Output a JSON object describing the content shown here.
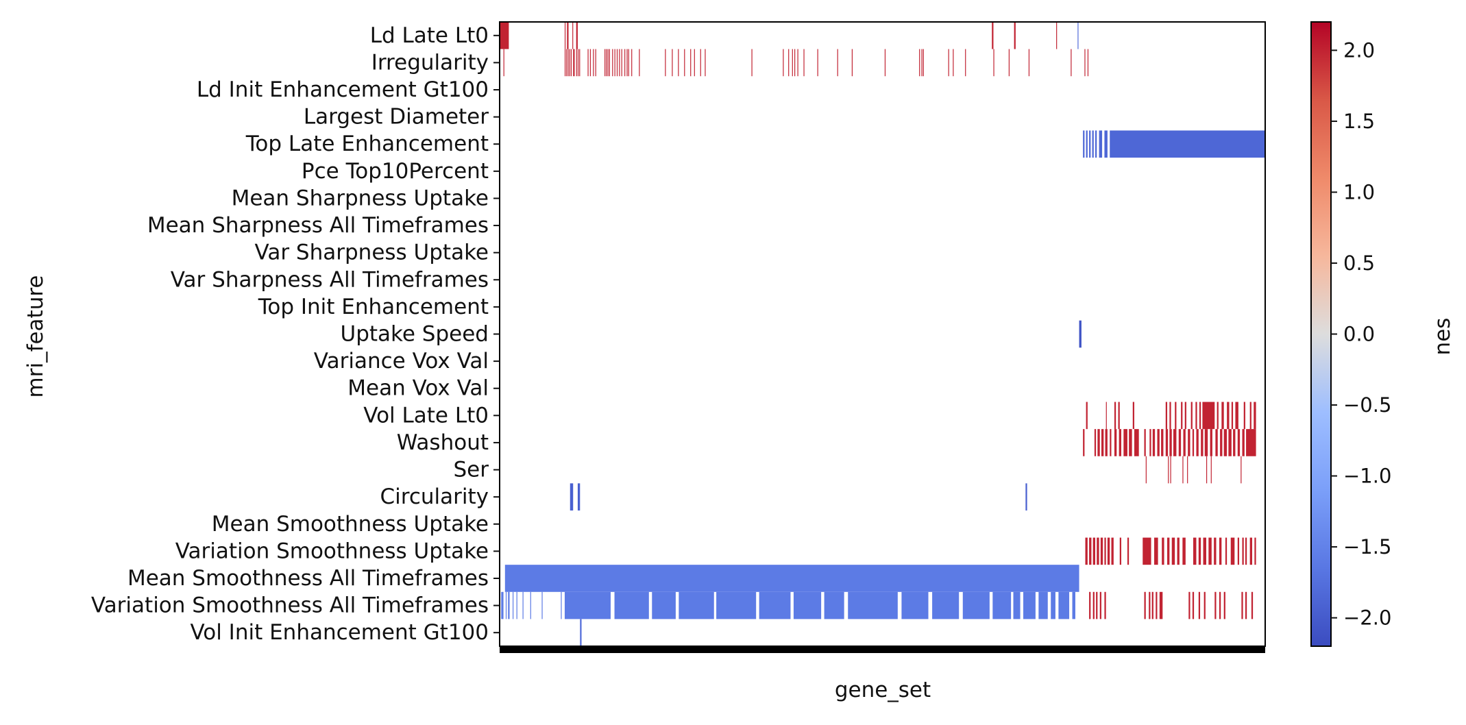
{
  "chart_data": {
    "type": "heatmap",
    "title": "",
    "xlabel": "gene_set",
    "ylabel": "mri_feature",
    "colorbar_label": "nes",
    "colormap": "coolwarm",
    "color_range": [
      -2.2,
      2.2
    ],
    "colorbar_ticks": [
      "2.0",
      "1.5",
      "1.0",
      "0.5",
      "0.0",
      "−0.5",
      "−1.0",
      "−1.5",
      "−2.0"
    ],
    "colorbar_tick_values": [
      2.0,
      1.5,
      1.0,
      0.5,
      0.0,
      -0.5,
      -1.0,
      -1.5,
      -2.0
    ],
    "x_range": [
      0,
      1000
    ],
    "x_tick_labels_visible": false,
    "rows": [
      "Ld Late Lt0",
      "Irregularity",
      "Ld Init Enhancement Gt100",
      "Largest Diameter",
      "Top Late Enhancement",
      "Pce Top10Percent",
      "Mean Sharpness Uptake",
      "Mean Sharpness All Timeframes",
      "Var Sharpness Uptake",
      "Var Sharpness All Timeframes",
      "Top Init Enhancement",
      "Uptake Speed",
      "Variance Vox Val",
      "Mean Vox Val",
      "Vol Late Lt0",
      "Washout",
      "Ser",
      "Circularity",
      "Mean Smoothness Uptake",
      "Variation Smoothness Uptake",
      "Mean Smoothness All Timeframes",
      "Variation Smoothness All Timeframes",
      "Vol Init Enhancement Gt100"
    ],
    "cells": [
      {
        "row": 0,
        "value": 2.0,
        "ranges": [
          [
            0,
            12
          ],
          [
            85,
            86
          ],
          [
            88,
            90
          ],
          [
            95,
            96
          ],
          [
            100,
            102
          ],
          [
            643,
            645
          ],
          [
            672,
            674
          ],
          [
            727,
            728
          ]
        ]
      },
      {
        "row": 0,
        "value": -1.8,
        "ranges": [
          [
            755,
            756
          ]
        ]
      },
      {
        "row": 1,
        "value": 2.0,
        "ranges": [
          [
            5,
            6
          ],
          [
            85,
            86
          ],
          [
            87,
            88
          ],
          [
            89,
            90
          ],
          [
            91,
            92
          ],
          [
            93,
            94
          ],
          [
            96,
            98
          ],
          [
            100,
            101
          ],
          [
            102,
            103
          ],
          [
            104,
            105
          ],
          [
            115,
            116
          ],
          [
            118,
            119
          ],
          [
            122,
            123
          ],
          [
            125,
            126
          ],
          [
            137,
            138
          ],
          [
            139,
            140
          ],
          [
            141,
            142
          ],
          [
            143,
            144
          ],
          [
            147,
            148
          ],
          [
            150,
            151
          ],
          [
            153,
            154
          ],
          [
            156,
            157
          ],
          [
            159,
            160
          ],
          [
            163,
            164
          ],
          [
            166,
            167
          ],
          [
            168,
            169
          ],
          [
            172,
            173
          ],
          [
            182,
            183
          ],
          [
            216,
            217
          ],
          [
            225,
            226
          ],
          [
            233,
            234
          ],
          [
            241,
            242
          ],
          [
            249,
            250
          ],
          [
            254,
            255
          ],
          [
            262,
            263
          ],
          [
            268,
            269
          ],
          [
            329,
            330
          ],
          [
            370,
            371
          ],
          [
            377,
            378
          ],
          [
            382,
            383
          ],
          [
            385,
            386
          ],
          [
            389,
            390
          ],
          [
            397,
            398
          ],
          [
            415,
            416
          ],
          [
            441,
            442
          ],
          [
            460,
            461
          ],
          [
            503,
            504
          ],
          [
            548,
            549
          ],
          [
            551,
            552
          ],
          [
            553,
            554
          ],
          [
            586,
            587
          ],
          [
            592,
            593
          ],
          [
            608,
            609
          ],
          [
            645,
            646
          ],
          [
            665,
            666
          ],
          [
            691,
            692
          ],
          [
            746,
            747
          ],
          [
            764,
            765
          ],
          [
            768,
            769
          ]
        ]
      },
      {
        "row": 4,
        "value": -1.85,
        "ranges": [
          [
            762,
            764
          ],
          [
            766,
            768
          ],
          [
            770,
            772
          ],
          [
            774,
            776
          ],
          [
            778,
            780
          ],
          [
            783,
            787
          ],
          [
            790,
            794
          ],
          [
            797,
            1000
          ]
        ]
      },
      {
        "row": 11,
        "value": -2.1,
        "ranges": [
          [
            757,
            760
          ]
        ]
      },
      {
        "row": 14,
        "value": 2.0,
        "ranges": [
          [
            766,
            768
          ],
          [
            792,
            793
          ],
          [
            803,
            805
          ],
          [
            808,
            810
          ],
          [
            827,
            829
          ],
          [
            870,
            872
          ],
          [
            875,
            877
          ],
          [
            882,
            884
          ],
          [
            890,
            892
          ],
          [
            895,
            897
          ],
          [
            903,
            905
          ],
          [
            909,
            911
          ],
          [
            914,
            916
          ],
          [
            918,
            934
          ],
          [
            937,
            939
          ],
          [
            943,
            946
          ],
          [
            950,
            953
          ],
          [
            956,
            958
          ],
          [
            961,
            965
          ],
          [
            972,
            974
          ],
          [
            980,
            982
          ],
          [
            985,
            988
          ]
        ]
      },
      {
        "row": 15,
        "value": 2.0,
        "ranges": [
          [
            762,
            764
          ],
          [
            777,
            779
          ],
          [
            781,
            784
          ],
          [
            786,
            789
          ],
          [
            791,
            794
          ],
          [
            797,
            799
          ],
          [
            803,
            806
          ],
          [
            809,
            812
          ],
          [
            815,
            820
          ],
          [
            822,
            826
          ],
          [
            829,
            835
          ],
          [
            842,
            844
          ],
          [
            849,
            851
          ],
          [
            853,
            856
          ],
          [
            859,
            862
          ],
          [
            864,
            867
          ],
          [
            870,
            873
          ],
          [
            875,
            878
          ],
          [
            880,
            884
          ],
          [
            887,
            890
          ],
          [
            893,
            896
          ],
          [
            899,
            902
          ],
          [
            905,
            907
          ],
          [
            910,
            913
          ],
          [
            916,
            919
          ],
          [
            921,
            925
          ],
          [
            928,
            931
          ],
          [
            935,
            938
          ],
          [
            941,
            944
          ],
          [
            946,
            950
          ],
          [
            952,
            956
          ],
          [
            958,
            961
          ],
          [
            964,
            967
          ],
          [
            970,
            973
          ],
          [
            975,
            988
          ]
        ]
      },
      {
        "row": 16,
        "value": 2.0,
        "ranges": [
          [
            844,
            845
          ],
          [
            873,
            874
          ],
          [
            876,
            877
          ],
          [
            892,
            893
          ],
          [
            898,
            899
          ],
          [
            923,
            924
          ],
          [
            929,
            930
          ],
          [
            968,
            969
          ]
        ]
      },
      {
        "row": 17,
        "value": -1.95,
        "ranges": [
          [
            92,
            96
          ],
          [
            102,
            105
          ],
          [
            687,
            689
          ]
        ]
      },
      {
        "row": 19,
        "value": 2.0,
        "ranges": [
          [
            765,
            768
          ],
          [
            770,
            773
          ],
          [
            775,
            778
          ],
          [
            780,
            783
          ],
          [
            785,
            788
          ],
          [
            790,
            792
          ],
          [
            794,
            797
          ],
          [
            799,
            802
          ],
          [
            810,
            812
          ],
          [
            820,
            822
          ],
          [
            840,
            851
          ],
          [
            855,
            860
          ],
          [
            865,
            868
          ],
          [
            872,
            875
          ],
          [
            878,
            882
          ],
          [
            885,
            888
          ],
          [
            892,
            896
          ],
          [
            906,
            910
          ],
          [
            913,
            916
          ],
          [
            919,
            923
          ],
          [
            926,
            930
          ],
          [
            933,
            936
          ],
          [
            940,
            943
          ],
          [
            948,
            950
          ],
          [
            955,
            960
          ],
          [
            964,
            966
          ],
          [
            970,
            972
          ],
          [
            974,
            976
          ],
          [
            980,
            983
          ],
          [
            986,
            988
          ]
        ]
      },
      {
        "row": 20,
        "value": -1.6,
        "ranges": [
          [
            7,
            757
          ]
        ]
      },
      {
        "row": 21,
        "value": -1.6,
        "ranges": [
          [
            2,
            5
          ],
          [
            8,
            9
          ],
          [
            11,
            13
          ],
          [
            17,
            18
          ],
          [
            22,
            23
          ],
          [
            30,
            31
          ],
          [
            40,
            41
          ],
          [
            55,
            56
          ],
          [
            80,
            81
          ],
          [
            85,
            145
          ],
          [
            150,
            195
          ],
          [
            199,
            230
          ],
          [
            234,
            280
          ],
          [
            283,
            335
          ],
          [
            339,
            380
          ],
          [
            384,
            420
          ],
          [
            424,
            450
          ],
          [
            455,
            520
          ],
          [
            525,
            560
          ],
          [
            565,
            600
          ],
          [
            605,
            640
          ],
          [
            644,
            668
          ],
          [
            671,
            680
          ],
          [
            684,
            700
          ],
          [
            704,
            716
          ],
          [
            720,
            726
          ],
          [
            730,
            744
          ],
          [
            748,
            752
          ]
        ]
      },
      {
        "row": 21,
        "value": 2.0,
        "ranges": [
          [
            770,
            772
          ],
          [
            775,
            777
          ],
          [
            779,
            781
          ],
          [
            784,
            786
          ],
          [
            790,
            792
          ],
          [
            842,
            844
          ],
          [
            848,
            850
          ],
          [
            852,
            854
          ],
          [
            857,
            859
          ],
          [
            862,
            866
          ],
          [
            900,
            902
          ],
          [
            905,
            907
          ],
          [
            913,
            915
          ],
          [
            920,
            922
          ],
          [
            934,
            936
          ],
          [
            940,
            942
          ],
          [
            946,
            948
          ],
          [
            969,
            971
          ],
          [
            974,
            976
          ],
          [
            982,
            984
          ]
        ]
      },
      {
        "row": 22,
        "value": -1.8,
        "ranges": [
          [
            105,
            107
          ]
        ]
      }
    ]
  }
}
